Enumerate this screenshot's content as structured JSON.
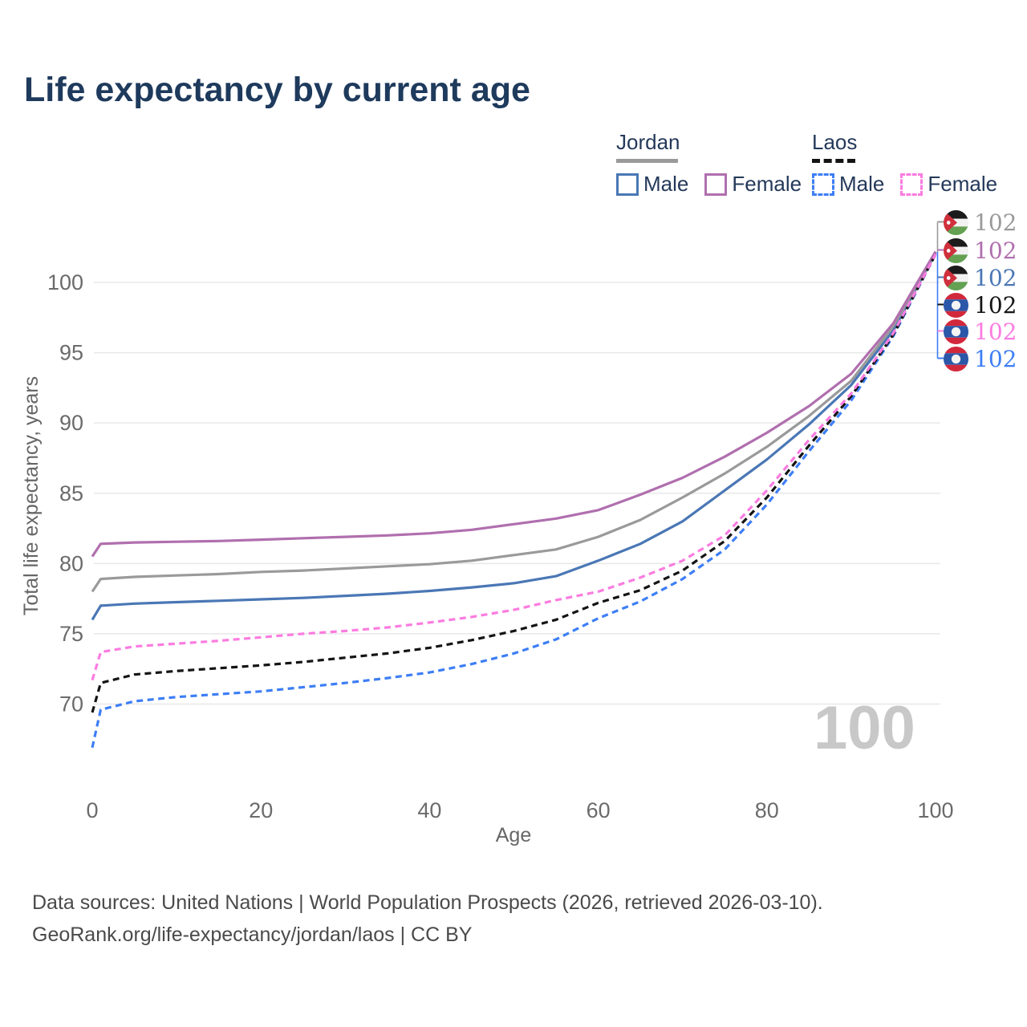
{
  "title": "Life expectancy by current age",
  "colors": {
    "title": "#1e3a5c",
    "jordan_male": "#4a77b5",
    "jordan_female": "#b06fae",
    "jordan_all": "#9a9a9a",
    "laos_male": "#3d7ef5",
    "laos_female": "#fb7ce0",
    "laos_all": "#141414",
    "grid": "#e8e8e8",
    "axis_text": "#6b6b6b",
    "watermark": "#c8c8c8"
  },
  "legend": {
    "groups": [
      {
        "label": "Jordan",
        "line_style": "solid",
        "underline_color": "#9a9a9a",
        "items": [
          {
            "label": "Male",
            "color": "#4a77b5"
          },
          {
            "label": "Female",
            "color": "#b06fae"
          }
        ]
      },
      {
        "label": "Laos",
        "line_style": "dashed",
        "underline_color": "#141414",
        "items": [
          {
            "label": "Male",
            "color": "#3d7ef5"
          },
          {
            "label": "Female",
            "color": "#fb7ce0"
          }
        ]
      }
    ]
  },
  "axes": {
    "x": {
      "label": "Age",
      "ticks": [
        0,
        20,
        40,
        60,
        80,
        100
      ]
    },
    "y": {
      "label": "Total life expectancy, years",
      "ticks": [
        70,
        75,
        80,
        85,
        90,
        95,
        100
      ]
    }
  },
  "chart_data": {
    "type": "line",
    "title": "Life expectancy by current age",
    "xlabel": "Age",
    "ylabel": "Total life expectancy, years",
    "xlim": [
      0,
      100
    ],
    "ylim": [
      66,
      103
    ],
    "grid": "horizontal",
    "legend_position": "top-right",
    "x": [
      0,
      1,
      5,
      10,
      15,
      20,
      25,
      30,
      35,
      40,
      45,
      50,
      55,
      60,
      65,
      70,
      75,
      80,
      85,
      90,
      95,
      100
    ],
    "series": [
      {
        "name": "Jordan Male",
        "country": "Jordan",
        "sex": "Male",
        "color": "#4a77b5",
        "dash": "solid",
        "end_label": "102",
        "values": [
          76.0,
          77.0,
          77.15,
          77.25,
          77.35,
          77.45,
          77.55,
          77.7,
          77.85,
          78.05,
          78.3,
          78.6,
          79.1,
          80.2,
          81.4,
          83.0,
          85.2,
          87.4,
          89.9,
          92.7,
          96.6,
          102.1
        ]
      },
      {
        "name": "Jordan Both sexes",
        "country": "Jordan",
        "sex": "All",
        "color": "#9a9a9a",
        "dash": "solid",
        "end_label": "102",
        "values": [
          78.0,
          78.9,
          79.05,
          79.15,
          79.25,
          79.4,
          79.5,
          79.65,
          79.8,
          79.95,
          80.2,
          80.6,
          81.0,
          81.9,
          83.1,
          84.7,
          86.4,
          88.3,
          90.5,
          93.0,
          96.9,
          102.15
        ]
      },
      {
        "name": "Jordan Female",
        "country": "Jordan",
        "sex": "Female",
        "color": "#b06fae",
        "dash": "solid",
        "end_label": "102",
        "values": [
          80.5,
          81.4,
          81.5,
          81.55,
          81.6,
          81.7,
          81.8,
          81.9,
          82.0,
          82.15,
          82.4,
          82.8,
          83.2,
          83.8,
          84.9,
          86.1,
          87.6,
          89.3,
          91.2,
          93.5,
          97.1,
          102.2
        ]
      },
      {
        "name": "Laos Male",
        "country": "Laos",
        "sex": "Male",
        "color": "#3d7ef5",
        "dash": "dashed",
        "end_label": "102",
        "values": [
          66.9,
          69.6,
          70.2,
          70.5,
          70.7,
          70.9,
          71.2,
          71.5,
          71.85,
          72.25,
          72.85,
          73.6,
          74.6,
          76.1,
          77.3,
          78.9,
          81.0,
          84.2,
          88.0,
          91.6,
          96.2,
          102.0
        ]
      },
      {
        "name": "Laos Both sexes",
        "country": "Laos",
        "sex": "All",
        "color": "#141414",
        "dash": "dashed",
        "end_label": "102",
        "values": [
          69.4,
          71.5,
          72.1,
          72.35,
          72.55,
          72.75,
          73.0,
          73.3,
          73.6,
          74.0,
          74.55,
          75.2,
          76.0,
          77.2,
          78.1,
          79.5,
          81.6,
          84.7,
          88.4,
          91.9,
          96.3,
          102.0
        ]
      },
      {
        "name": "Laos Female",
        "country": "Laos",
        "sex": "Female",
        "color": "#fb7ce0",
        "dash": "dashed",
        "end_label": "102",
        "values": [
          71.7,
          73.7,
          74.1,
          74.3,
          74.5,
          74.75,
          75.0,
          75.2,
          75.45,
          75.8,
          76.2,
          76.7,
          77.4,
          78.0,
          79.0,
          80.2,
          82.0,
          85.2,
          88.8,
          92.1,
          96.4,
          102.0
        ]
      }
    ]
  },
  "end_labels": {
    "items": [
      {
        "country": "Jordan",
        "flag": "jordan",
        "value": "102",
        "color": "#9a9a9a"
      },
      {
        "country": "Jordan",
        "flag": "jordan",
        "value": "102",
        "color": "#b06fae"
      },
      {
        "country": "Jordan",
        "flag": "jordan",
        "value": "102",
        "color": "#4a77b5"
      },
      {
        "country": "Laos",
        "flag": "laos",
        "value": "102",
        "color": "#141414"
      },
      {
        "country": "Laos",
        "flag": "laos",
        "value": "102",
        "color": "#fb7ce0"
      },
      {
        "country": "Laos",
        "flag": "laos",
        "value": "102",
        "color": "#3d7ef5"
      }
    ]
  },
  "watermark": "100",
  "footer": {
    "line1": "Data sources: United Nations | World Population Prospects (2026, retrieved 2026-03-10).",
    "line2": "GeoRank.org/life-expectancy/jordan/laos | CC BY"
  }
}
